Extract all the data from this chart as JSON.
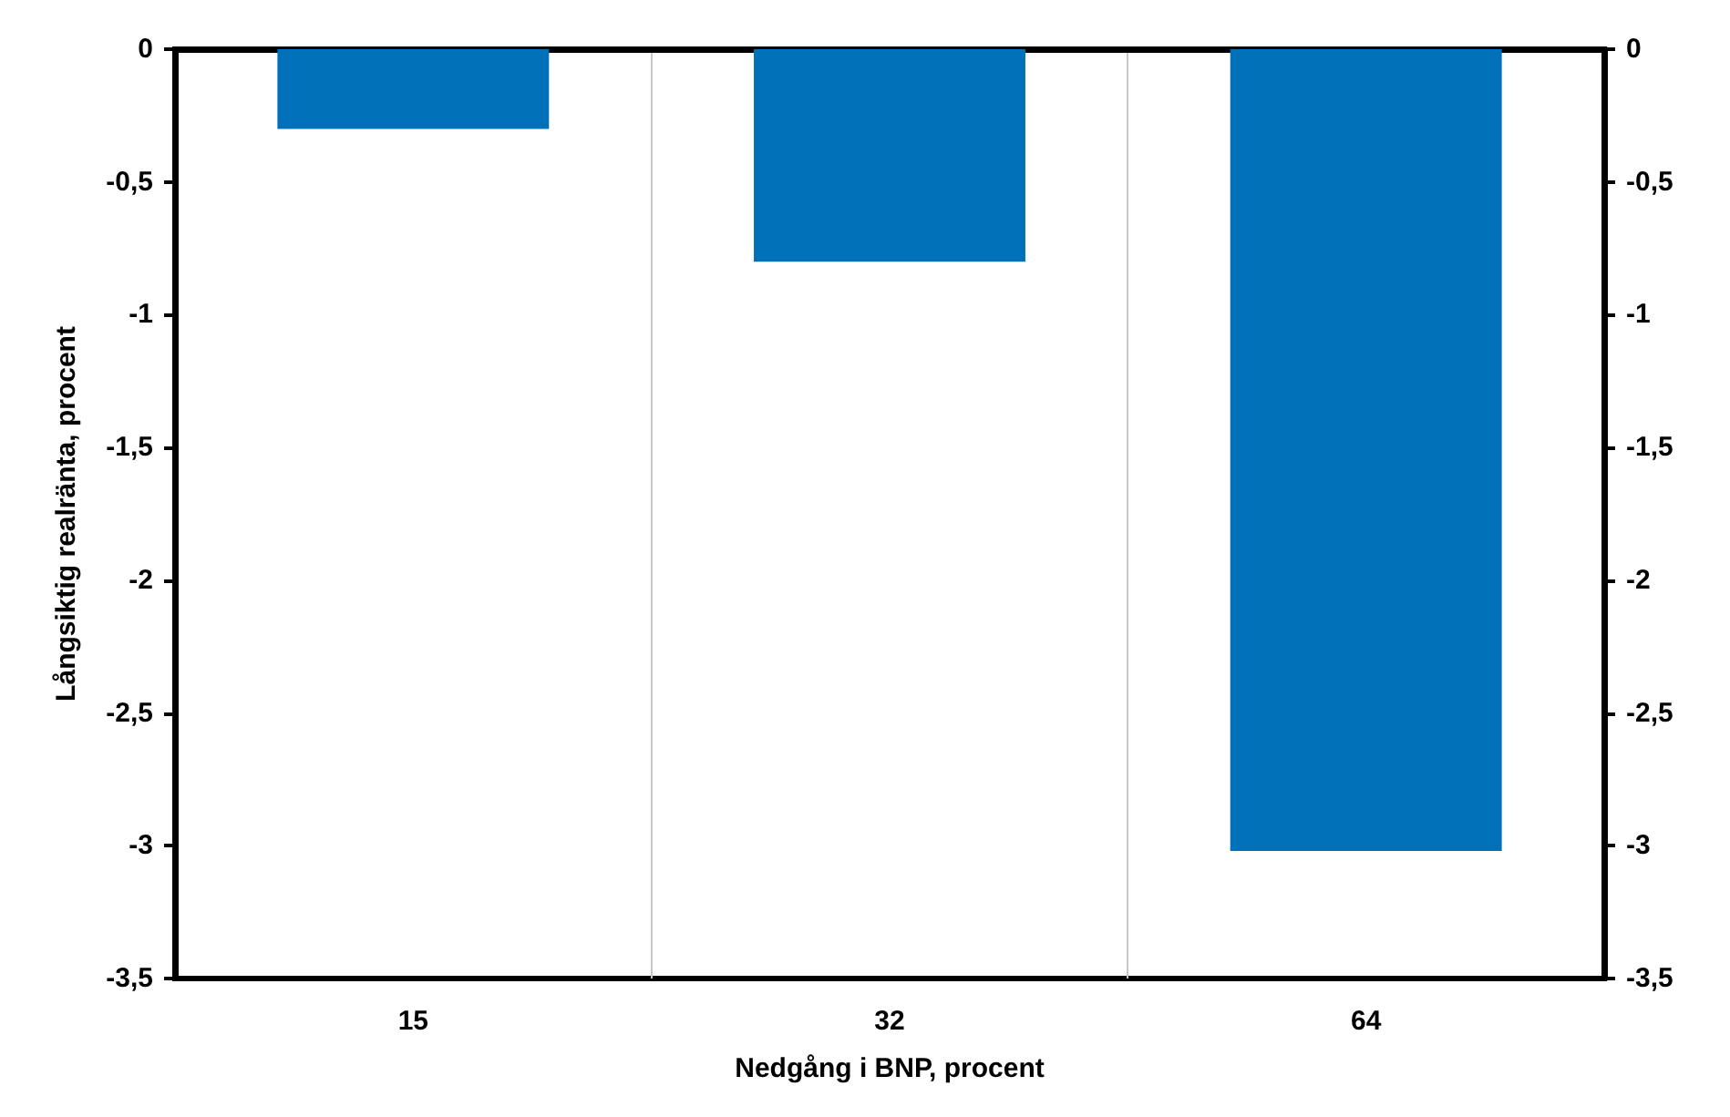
{
  "chart_data": {
    "type": "bar",
    "xlabel": "Nedgång i BNP, procent",
    "ylabel": "Långsiktig realränta, procent",
    "categories": [
      "15",
      "32",
      "64"
    ],
    "series": [
      {
        "color": "#0070b8",
        "values": [
          -0.3,
          -0.8,
          -3.02
        ]
      }
    ],
    "ylim": [
      -3.5,
      0
    ],
    "yticks": [
      0,
      {
        "value": -0.5,
        "label": "-0,5"
      },
      -1,
      {
        "value": -1.5,
        "label": "-1,5"
      },
      -2,
      {
        "value": -2.5,
        "label": "-2,5"
      },
      -3,
      {
        "value": -3.5,
        "label": "-3,5"
      }
    ],
    "y2lim": [
      -3.5,
      0
    ],
    "y2ticks": [
      0,
      {
        "value": -0.5,
        "label": "-0,5"
      },
      -1,
      {
        "value": -1.5,
        "label": "-1,5"
      },
      -2,
      {
        "value": -2.5,
        "label": "-2,5"
      },
      -3,
      {
        "value": -3.5,
        "label": "-3,5"
      }
    ],
    "grid": "x"
  }
}
